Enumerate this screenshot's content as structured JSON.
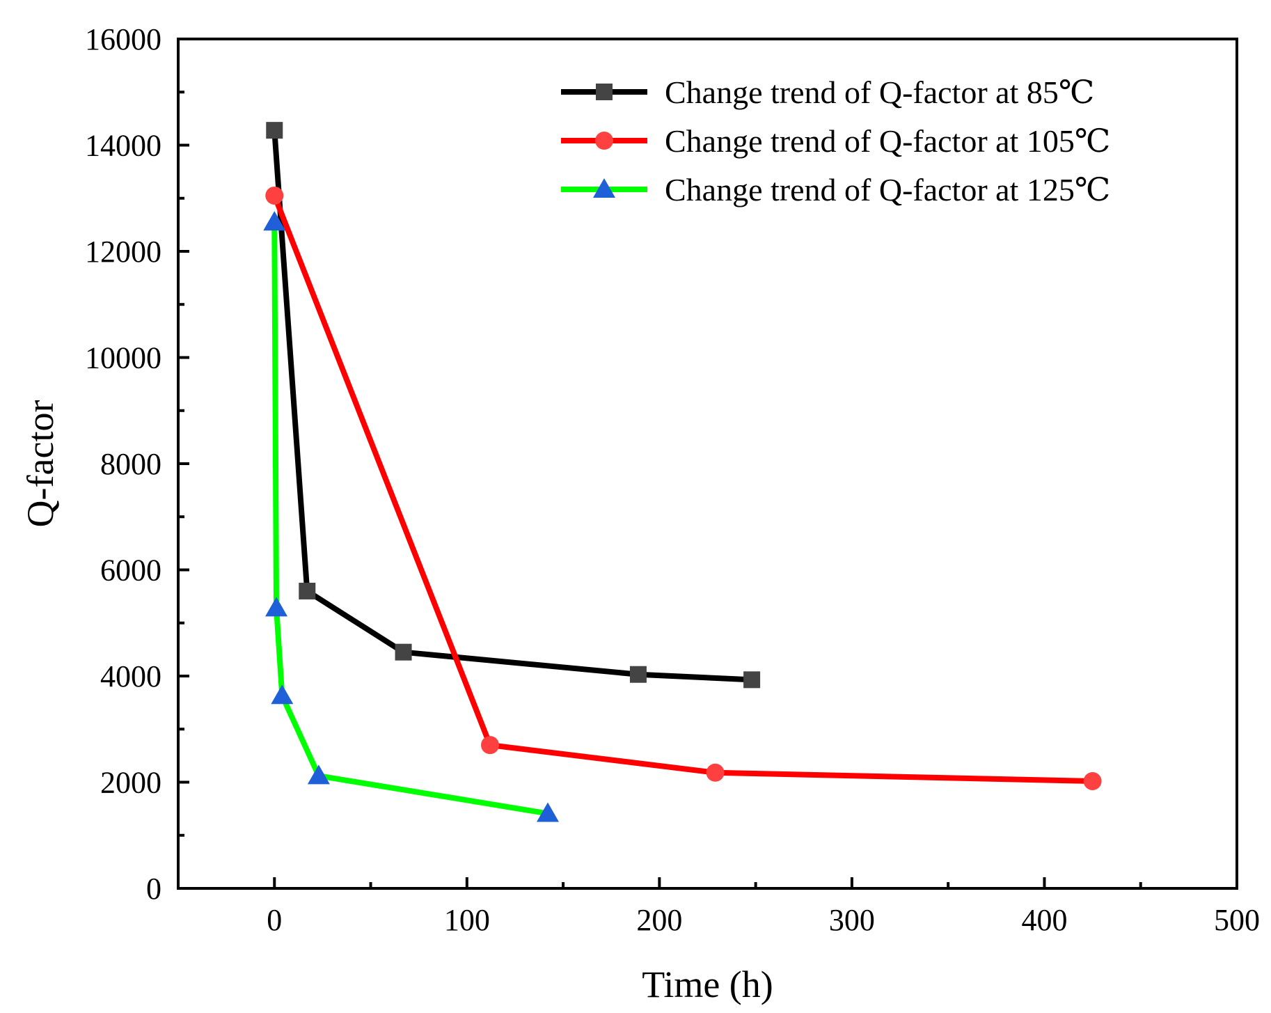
{
  "chart_data": {
    "type": "line",
    "title": "",
    "xlabel": "Time (h)",
    "ylabel": "Q-factor",
    "xlim": [
      -50,
      500
    ],
    "ylim": [
      0,
      16000
    ],
    "x_ticks": [
      0,
      100,
      200,
      300,
      400,
      500
    ],
    "x_minor_ticks": [
      -50,
      50,
      150,
      250,
      350,
      450
    ],
    "y_ticks": [
      0,
      2000,
      4000,
      6000,
      8000,
      10000,
      12000,
      14000,
      16000
    ],
    "y_minor_ticks": [
      1000,
      3000,
      5000,
      7000,
      9000,
      11000,
      13000,
      15000
    ],
    "grid": false,
    "legend_position": "top-right",
    "series": [
      {
        "name": "Change trend of Q-factor at 85℃",
        "line_color": "#000000",
        "marker": "square",
        "marker_color": "#444444",
        "x": [
          0,
          17,
          67,
          189,
          248
        ],
        "y": [
          14280,
          5600,
          4450,
          4030,
          3930
        ]
      },
      {
        "name": "Change trend of Q-factor at 105℃",
        "line_color": "#ff0000",
        "marker": "circle",
        "marker_color": "#ff4040",
        "x": [
          0,
          112,
          229,
          425
        ],
        "y": [
          13050,
          2700,
          2180,
          2020
        ]
      },
      {
        "name": "Change trend of Q-factor at 125℃",
        "line_color": "#00ff00",
        "marker": "triangle",
        "marker_color": "#1f5fd8",
        "x": [
          0,
          1,
          4,
          23,
          142
        ],
        "y": [
          12550,
          5280,
          3630,
          2120,
          1410
        ]
      }
    ]
  }
}
